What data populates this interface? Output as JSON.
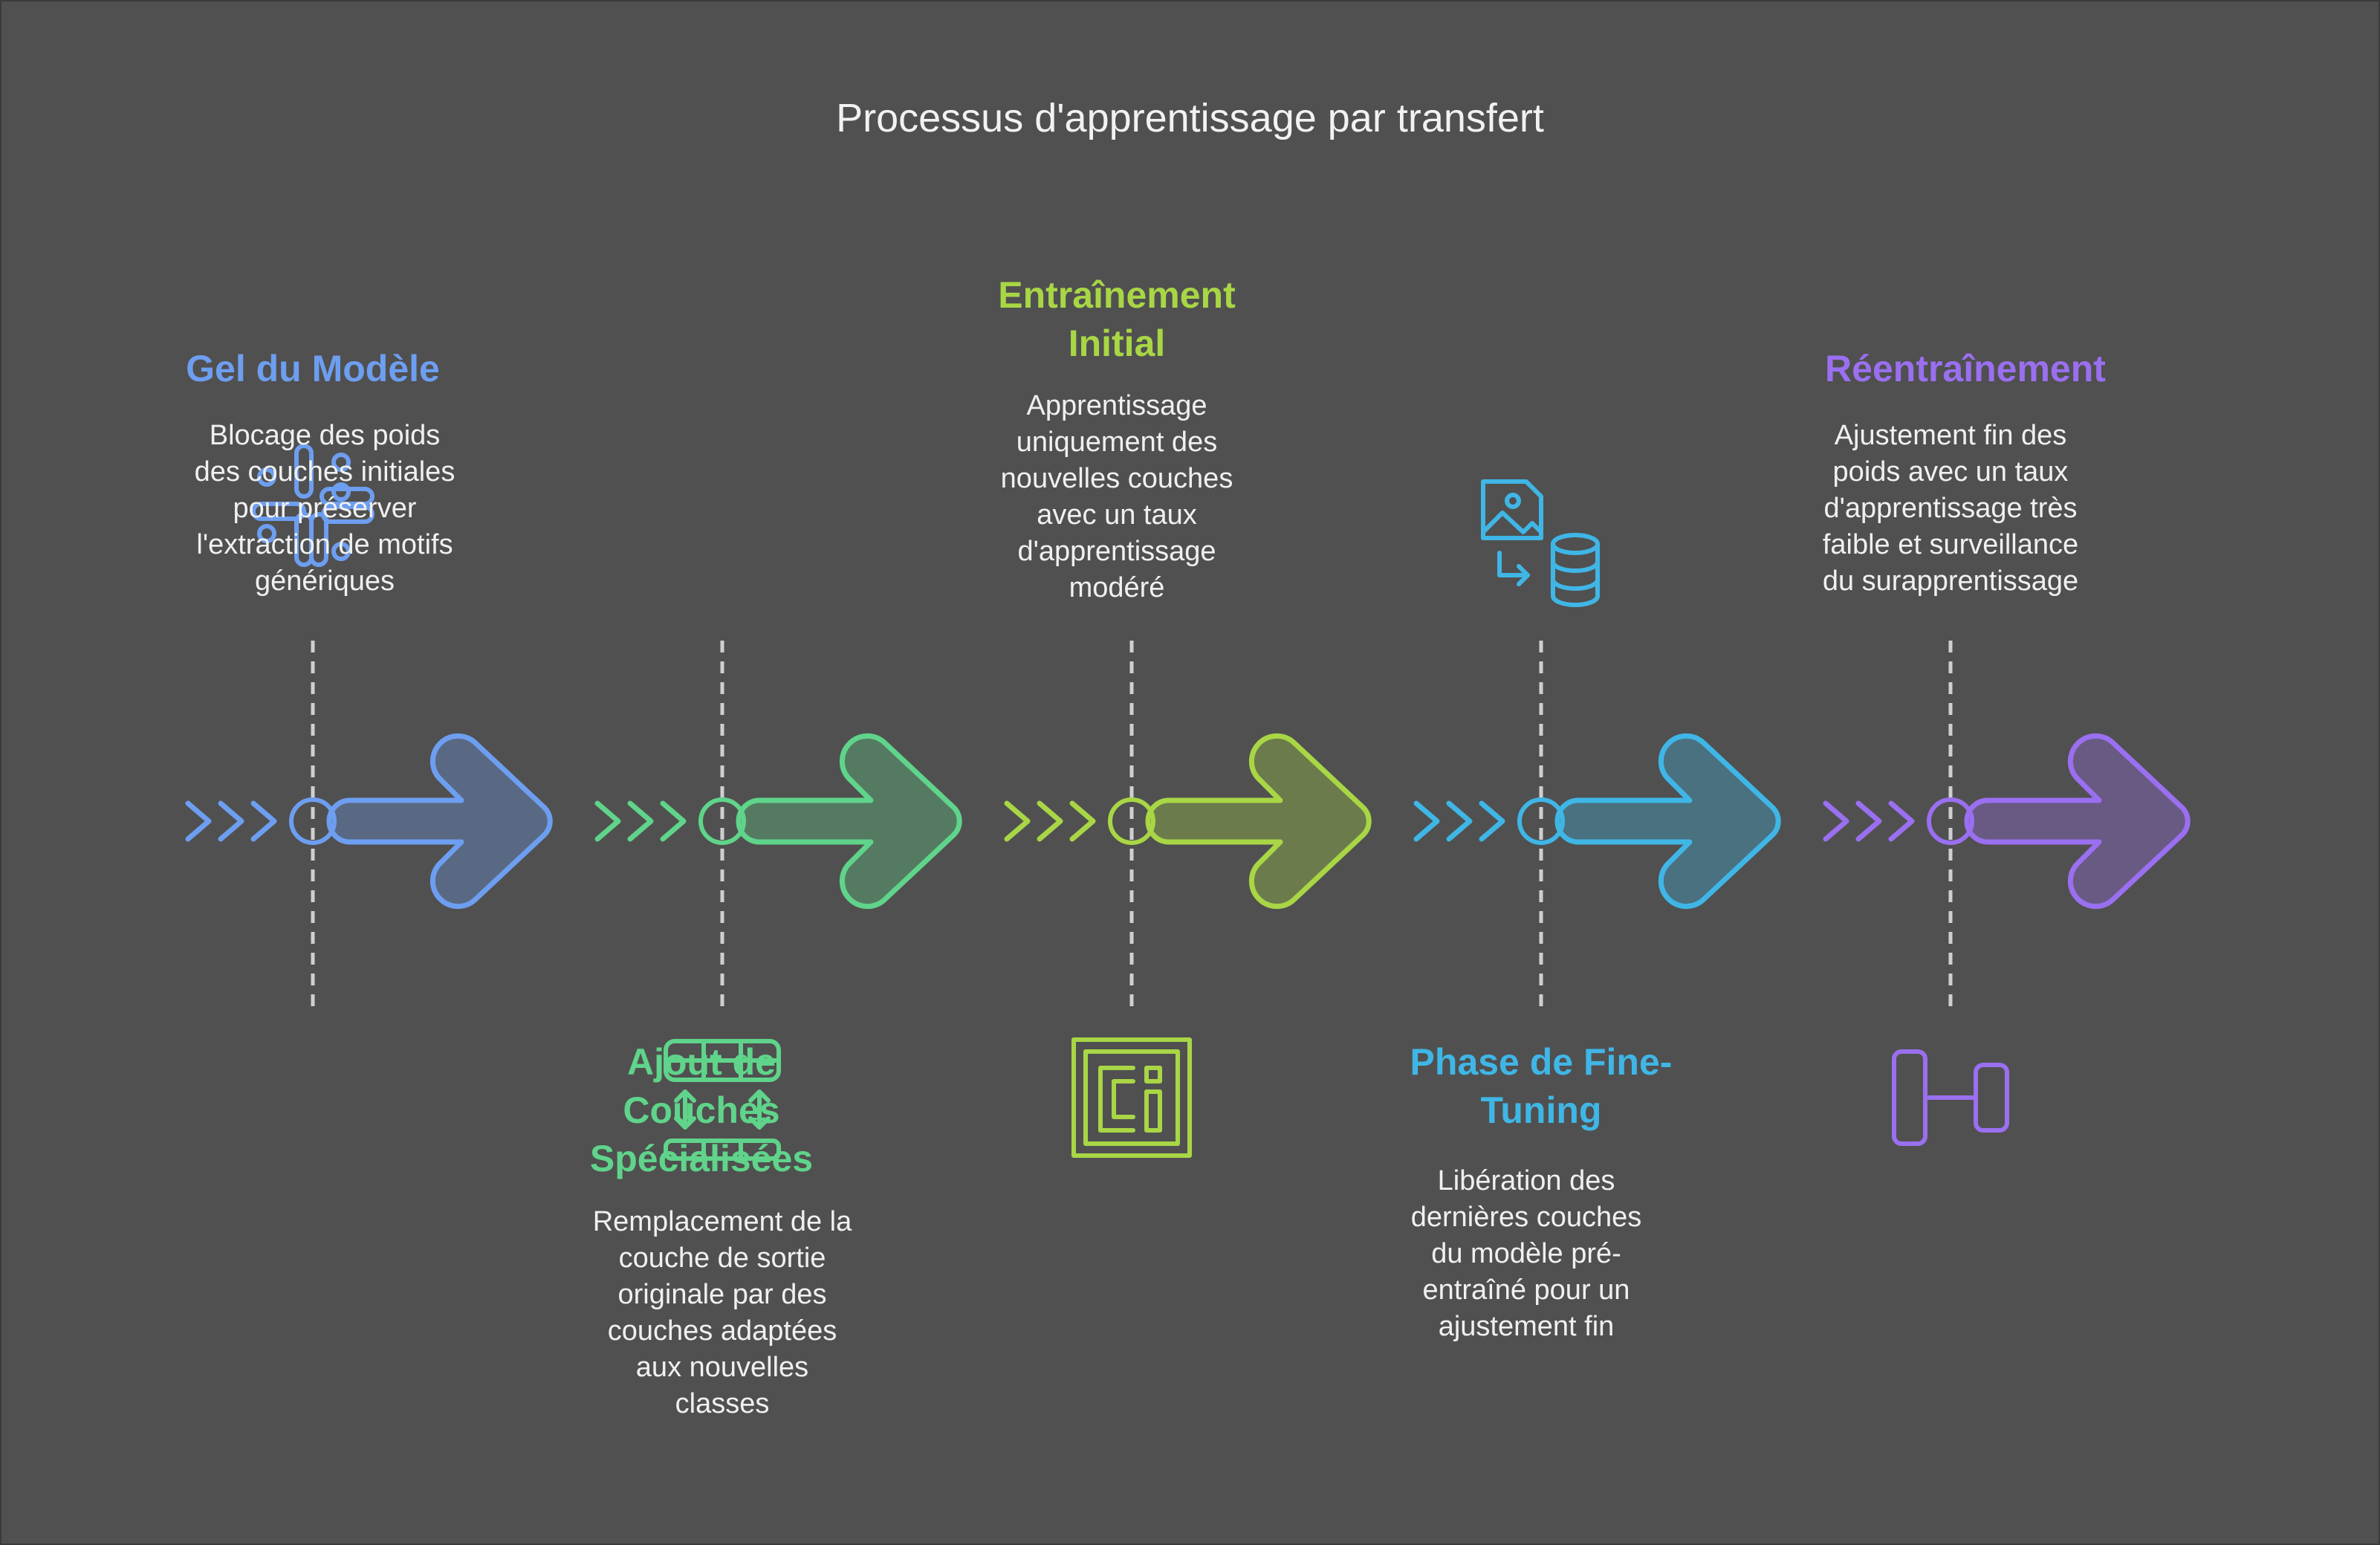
{
  "title": "Processus d'apprentissage par transfert",
  "steps": [
    {
      "heading_lines": [
        "Gel du Modèle"
      ],
      "description_lines": [
        "Blocage des poids",
        "des couches initiales",
        "pour préserver",
        "l'extraction de motifs",
        "génériques"
      ],
      "color": "#6d9ef0",
      "icon": "slack-icon"
    },
    {
      "heading_lines": [
        "Ajout de",
        "Couches",
        "Spécialisées"
      ],
      "description_lines": [
        "Remplacement de la",
        "couche de sortie",
        "originale par des",
        "couches adaptées",
        "aux nouvelles",
        "classes"
      ],
      "color": "#5fd48a",
      "icon": "table-layers-icon"
    },
    {
      "heading_lines": [
        "Entraînement",
        "Initial"
      ],
      "description_lines": [
        "Apprentissage",
        "uniquement des",
        "nouvelles couches",
        "avec un taux",
        "d'apprentissage",
        "modéré"
      ],
      "color": "#a8d645",
      "icon": "ci-badge-icon"
    },
    {
      "heading_lines": [
        "Phase de Fine-",
        "Tuning"
      ],
      "description_lines": [
        "Libération des",
        "dernières couches",
        "du modèle pré-",
        "entraîné pour un",
        "ajustement fin"
      ],
      "color": "#3fb6e6",
      "icon": "image-to-database-icon"
    },
    {
      "heading_lines": [
        "Réentraînement"
      ],
      "description_lines": [
        "Ajustement fin des",
        "poids avec un taux",
        "d'apprentissage très",
        "faible et surveillance",
        "du surapprentissage"
      ],
      "color": "#9a6ff0",
      "icon": "dumbbell-icon"
    }
  ]
}
